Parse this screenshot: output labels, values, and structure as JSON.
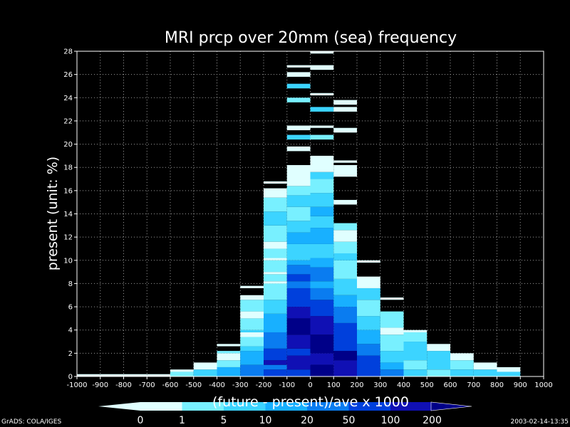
{
  "chart_data": {
    "type": "heatmap",
    "title": "MRI  prcp over 20mm (sea) frequency",
    "xlabel": "(future - present)/ave  x 1000",
    "ylabel": "present (unit: %)",
    "xlim": [
      -1000,
      1000
    ],
    "ylim": [
      0,
      28
    ],
    "x_ticks": [
      -1000,
      -900,
      -800,
      -700,
      -600,
      -500,
      -400,
      -300,
      -200,
      -100,
      0,
      100,
      200,
      300,
      400,
      500,
      600,
      700,
      800,
      900,
      1000
    ],
    "y_ticks": [
      0,
      2,
      4,
      6,
      8,
      10,
      12,
      14,
      16,
      18,
      20,
      22,
      24,
      26,
      28
    ],
    "grid": true,
    "bin_width": 100,
    "bin_height": 0.2,
    "legend": {
      "levels": [
        "0",
        "1",
        "5",
        "10",
        "20",
        "50",
        "100",
        "200"
      ],
      "colors": [
        "#e0ffff",
        "#78f0ff",
        "#3cd4ff",
        "#18b0ff",
        "#0a7cf0",
        "#0040dc",
        "#1010b4",
        "#000088"
      ]
    },
    "columns": [
      {
        "x": -1000,
        "segs": [
          [
            0,
            0.2,
            0
          ]
        ]
      },
      {
        "x": -900,
        "segs": [
          [
            0,
            0.2,
            0
          ]
        ]
      },
      {
        "x": -800,
        "segs": [
          [
            0,
            0.2,
            0
          ]
        ]
      },
      {
        "x": -700,
        "segs": [
          [
            0,
            0.2,
            0
          ]
        ]
      },
      {
        "x": -600,
        "segs": [
          [
            0,
            0.4,
            1
          ],
          [
            0.4,
            0.6,
            0
          ]
        ]
      },
      {
        "x": -500,
        "segs": [
          [
            0,
            0.6,
            2
          ],
          [
            0.6,
            1.2,
            0
          ]
        ]
      },
      {
        "x": -400,
        "segs": [
          [
            0,
            0.8,
            3
          ],
          [
            0.8,
            1.4,
            1
          ],
          [
            1.4,
            2.0,
            0
          ],
          [
            2.0,
            2.2,
            1
          ],
          [
            2.6,
            2.8,
            0
          ]
        ]
      },
      {
        "x": -300,
        "segs": [
          [
            0,
            1.0,
            4
          ],
          [
            1.0,
            2.2,
            3
          ],
          [
            2.2,
            2.6,
            2
          ],
          [
            2.6,
            3.4,
            1
          ],
          [
            3.4,
            3.8,
            0
          ],
          [
            3.8,
            4.0,
            2
          ],
          [
            4.0,
            5.0,
            1
          ],
          [
            5.0,
            5.6,
            0
          ],
          [
            5.6,
            6.6,
            1
          ],
          [
            6.6,
            7.0,
            0
          ],
          [
            7.6,
            7.8,
            0
          ]
        ]
      },
      {
        "x": -200,
        "segs": [
          [
            0,
            0.6,
            5
          ],
          [
            0.6,
            1.0,
            4
          ],
          [
            1.0,
            1.4,
            6
          ],
          [
            1.4,
            2.4,
            5
          ],
          [
            2.4,
            3.8,
            4
          ],
          [
            3.8,
            5.4,
            3
          ],
          [
            5.4,
            6.6,
            2
          ],
          [
            6.6,
            8.0,
            1
          ],
          [
            8.0,
            8.2,
            0
          ],
          [
            8.2,
            8.8,
            1
          ],
          [
            8.8,
            9.0,
            0
          ],
          [
            9.0,
            10.0,
            1
          ],
          [
            10.0,
            10.2,
            0
          ],
          [
            10.2,
            11.0,
            1
          ],
          [
            11.0,
            11.6,
            0
          ],
          [
            11.6,
            13.0,
            1
          ],
          [
            13.0,
            14.2,
            2
          ],
          [
            14.2,
            15.4,
            1
          ],
          [
            15.4,
            16.2,
            0
          ],
          [
            16.6,
            16.8,
            0
          ]
        ]
      },
      {
        "x": -100,
        "segs": [
          [
            0,
            0.6,
            5
          ],
          [
            0.6,
            1.8,
            6
          ],
          [
            1.8,
            2.4,
            5
          ],
          [
            2.4,
            3.6,
            6
          ],
          [
            3.6,
            5.0,
            7
          ],
          [
            5.0,
            6.0,
            6
          ],
          [
            6.0,
            7.6,
            5
          ],
          [
            7.6,
            8.2,
            4
          ],
          [
            8.2,
            8.8,
            5
          ],
          [
            8.8,
            9.6,
            4
          ],
          [
            9.6,
            10.0,
            3
          ],
          [
            10.0,
            11.4,
            2
          ],
          [
            11.4,
            12.4,
            3
          ],
          [
            12.4,
            13.4,
            2
          ],
          [
            13.4,
            14.6,
            1
          ],
          [
            14.6,
            15.6,
            2
          ],
          [
            15.6,
            16.4,
            1
          ],
          [
            16.4,
            18.2,
            0
          ],
          [
            19.4,
            19.8,
            0
          ],
          [
            20.4,
            20.8,
            2
          ],
          [
            21.2,
            21.6,
            0
          ],
          [
            23.6,
            24.0,
            1
          ],
          [
            24.8,
            25.2,
            2
          ],
          [
            25.8,
            26.2,
            0
          ],
          [
            26.6,
            26.8,
            0
          ]
        ]
      },
      {
        "x": 0,
        "segs": [
          [
            0,
            1.0,
            7
          ],
          [
            1.0,
            2.0,
            6
          ],
          [
            2.0,
            3.6,
            7
          ],
          [
            3.6,
            5.2,
            6
          ],
          [
            5.2,
            6.6,
            5
          ],
          [
            6.6,
            7.6,
            4
          ],
          [
            7.6,
            8.2,
            3
          ],
          [
            8.2,
            9.4,
            4
          ],
          [
            9.4,
            10.2,
            3
          ],
          [
            10.2,
            11.4,
            2
          ],
          [
            11.4,
            12.8,
            3
          ],
          [
            12.8,
            13.8,
            2
          ],
          [
            13.8,
            14.6,
            3
          ],
          [
            14.6,
            15.8,
            2
          ],
          [
            15.8,
            17.0,
            1
          ],
          [
            17.0,
            17.6,
            2
          ],
          [
            17.6,
            19.0,
            0
          ],
          [
            20.4,
            20.8,
            1
          ],
          [
            21.4,
            21.6,
            0
          ],
          [
            22.8,
            23.2,
            2
          ],
          [
            24.2,
            24.4,
            0
          ],
          [
            26.4,
            26.8,
            0
          ],
          [
            27.8,
            28.0,
            0
          ]
        ]
      },
      {
        "x": 100,
        "segs": [
          [
            0,
            1.4,
            6
          ],
          [
            1.4,
            2.2,
            7
          ],
          [
            2.2,
            4.6,
            5
          ],
          [
            4.6,
            6.0,
            4
          ],
          [
            6.0,
            7.0,
            3
          ],
          [
            7.0,
            8.4,
            2
          ],
          [
            8.4,
            10.0,
            1
          ],
          [
            10.0,
            10.6,
            2
          ],
          [
            10.6,
            11.6,
            1
          ],
          [
            11.6,
            12.6,
            0
          ],
          [
            12.6,
            13.2,
            1
          ],
          [
            14.8,
            15.2,
            0
          ],
          [
            17.2,
            18.2,
            0
          ],
          [
            18.4,
            18.6,
            0
          ],
          [
            21.0,
            21.4,
            0
          ],
          [
            22.8,
            23.2,
            0
          ],
          [
            23.4,
            23.8,
            0
          ]
        ]
      },
      {
        "x": 200,
        "segs": [
          [
            0,
            1.8,
            5
          ],
          [
            1.8,
            2.8,
            4
          ],
          [
            2.8,
            4.0,
            3
          ],
          [
            4.0,
            5.2,
            2
          ],
          [
            5.2,
            6.6,
            1
          ],
          [
            6.6,
            7.6,
            2
          ],
          [
            7.6,
            8.6,
            0
          ],
          [
            9.8,
            10.0,
            0
          ]
        ]
      },
      {
        "x": 300,
        "segs": [
          [
            0,
            0.6,
            4
          ],
          [
            0.6,
            1.2,
            3
          ],
          [
            1.2,
            2.2,
            2
          ],
          [
            2.2,
            3.6,
            1
          ],
          [
            3.6,
            4.2,
            0
          ],
          [
            4.2,
            5.6,
            1
          ],
          [
            6.6,
            6.8,
            0
          ]
        ]
      },
      {
        "x": 400,
        "segs": [
          [
            0,
            0.6,
            2
          ],
          [
            0.6,
            1.4,
            1
          ],
          [
            1.4,
            3.0,
            2
          ],
          [
            3.0,
            3.8,
            1
          ],
          [
            3.8,
            4.0,
            0
          ]
        ]
      },
      {
        "x": 500,
        "segs": [
          [
            0,
            0.6,
            1
          ],
          [
            0.6,
            2.2,
            2
          ],
          [
            2.2,
            2.8,
            0
          ]
        ]
      },
      {
        "x": 600,
        "segs": [
          [
            0,
            0.6,
            2
          ],
          [
            0.6,
            1.4,
            1
          ],
          [
            1.4,
            2.0,
            0
          ]
        ]
      },
      {
        "x": 700,
        "segs": [
          [
            0,
            0.6,
            2
          ],
          [
            0.6,
            1.2,
            0
          ]
        ]
      },
      {
        "x": 800,
        "segs": [
          [
            0,
            0.4,
            2
          ],
          [
            0.4,
            0.8,
            0
          ]
        ]
      }
    ]
  },
  "footer": {
    "left": "GrADS: COLA/IGES",
    "right": "2003-02-14-13:35"
  }
}
